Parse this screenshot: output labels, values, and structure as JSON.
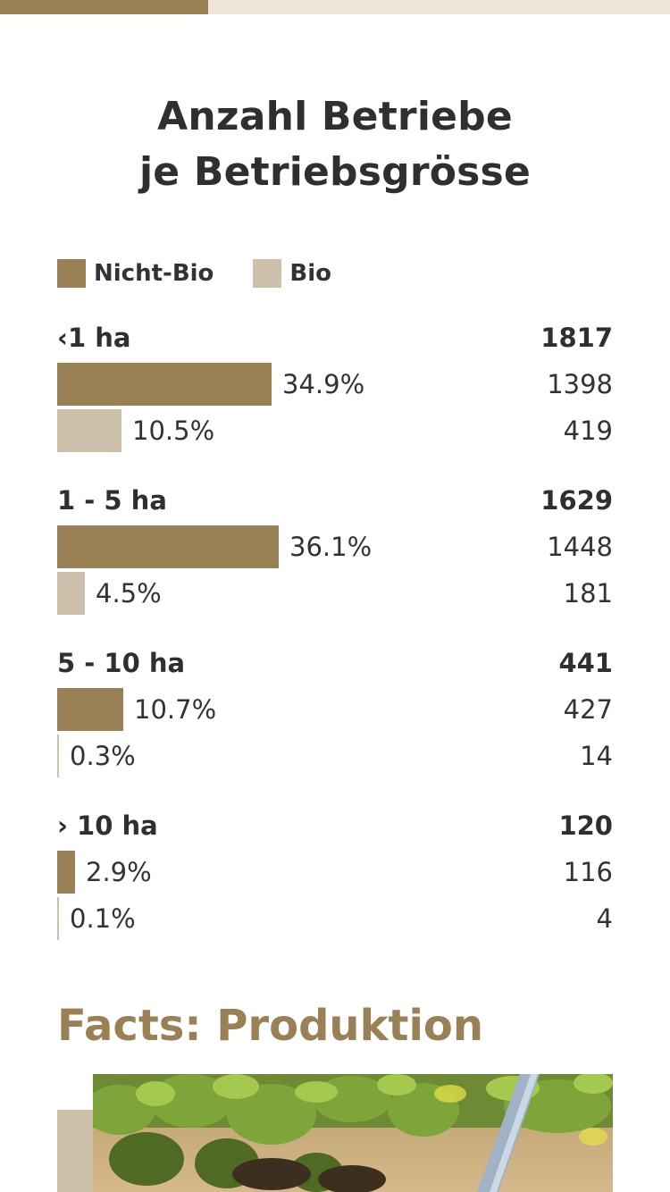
{
  "progress": {
    "fraction": 0.31
  },
  "title_lines": [
    "Anzahl Betriebe",
    "je Betriebsgrösse"
  ],
  "legend": [
    {
      "label": "Nicht-Bio",
      "color": "#9a8055"
    },
    {
      "label": "Bio",
      "color": "#cdc1ab"
    }
  ],
  "chart_data": {
    "type": "bar",
    "title": "Anzahl Betriebe je Betriebsgrösse",
    "categories": [
      "‹1 ha",
      "1 - 5 ha",
      "5 - 10 ha",
      "› 10 ha"
    ],
    "totals": [
      "1817",
      "1629",
      "441",
      "120"
    ],
    "series": [
      {
        "name": "Nicht-Bio",
        "color": "#9a8055",
        "percent": [
          34.9,
          36.1,
          10.7,
          2.9
        ],
        "percent_labels": [
          "34.9%",
          "36.1%",
          "10.7%",
          "2.9%"
        ],
        "counts": [
          "1398",
          "1448",
          "427",
          "116"
        ]
      },
      {
        "name": "Bio",
        "color": "#cdc1ab",
        "percent": [
          10.5,
          4.5,
          0.3,
          0.1
        ],
        "percent_labels": [
          "10.5%",
          "4.5%",
          "0.3%",
          "0.1%"
        ],
        "counts": [
          "419",
          "181",
          "14",
          "4"
        ]
      }
    ]
  },
  "section": {
    "title": "Facts: Produktion"
  },
  "photo": {
    "description_icon": "plants-photo"
  }
}
